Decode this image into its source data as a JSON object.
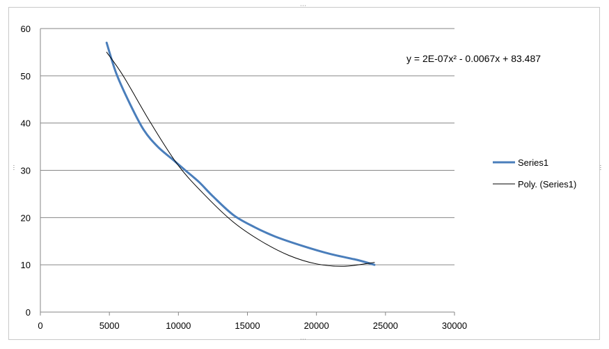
{
  "chart_data": {
    "type": "scatter",
    "title": "",
    "xlabel": "",
    "ylabel": "",
    "xlim": [
      0,
      30000
    ],
    "ylim": [
      0,
      60
    ],
    "x_ticks": [
      "0",
      "5000",
      "10000",
      "15000",
      "20000",
      "25000",
      "30000"
    ],
    "y_ticks": [
      "0",
      "10",
      "20",
      "30",
      "40",
      "50",
      "60"
    ],
    "grid": "horizontal",
    "legend_position": "right",
    "series": [
      {
        "name": "Series1",
        "color": "#4a7ebb",
        "style": "smooth-line",
        "x": [
          4800,
          5500,
          6500,
          7500,
          8500,
          9500,
          10500,
          11500,
          12500,
          14000,
          15500,
          17000,
          19000,
          21000,
          23000,
          24200
        ],
        "y": [
          57,
          50.5,
          44,
          38.5,
          35,
          32.5,
          30,
          27.5,
          24.5,
          20.5,
          18,
          16,
          14,
          12.3,
          11,
          10
        ]
      },
      {
        "name": "Poly. (Series1)",
        "color": "#000000",
        "style": "trendline",
        "x": [
          4800,
          6000,
          8000,
          10000,
          12000,
          14000,
          16000,
          18000,
          20000,
          22000,
          24200
        ],
        "y": [
          55,
          50,
          40,
          31,
          24.5,
          19,
          15,
          12,
          10.2,
          9.7,
          10.5
        ]
      }
    ],
    "annotations": [
      {
        "text": "y = 2E-07x² - 0.0067x + 83.487",
        "x": 24500,
        "y": 55
      }
    ]
  }
}
